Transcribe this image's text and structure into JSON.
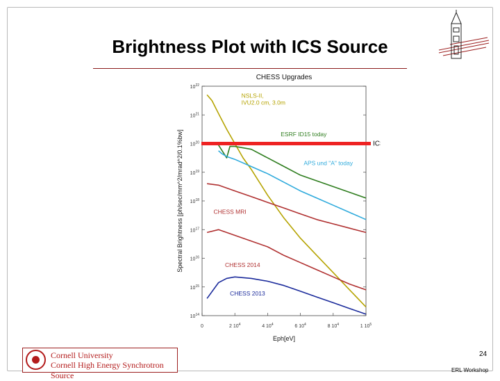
{
  "slide": {
    "title": "Brightness Plot with ICS Source",
    "page_number": "24",
    "footer_text": "ERL Workshop",
    "logo": {
      "line1": "Cornell University",
      "line2": "Cornell High Energy Synchrotron Source"
    }
  },
  "colors": {
    "accent": "#8b1a1a",
    "ics_line": "#ee2222"
  },
  "chart_data": {
    "type": "line",
    "title": "CHESS Upgrades",
    "xlabel": "Eph[eV]",
    "ylabel": "Spectral Brightness [ph/sec/mm^2/mrad^2/0.1%bw]",
    "xlim": [
      0,
      100000
    ],
    "ylim": [
      14,
      22
    ],
    "y_scale": "log",
    "x_ticks": [
      {
        "value": 0,
        "base": "0",
        "exp": ""
      },
      {
        "value": 20000,
        "base": "2 10",
        "exp": "4"
      },
      {
        "value": 40000,
        "base": "4 10",
        "exp": "4"
      },
      {
        "value": 60000,
        "base": "6 10",
        "exp": "4"
      },
      {
        "value": 80000,
        "base": "8 10",
        "exp": "4"
      },
      {
        "value": 100000,
        "base": "1 10",
        "exp": "5"
      }
    ],
    "y_ticks": [
      {
        "value": 14,
        "base": "10",
        "exp": "14"
      },
      {
        "value": 15,
        "base": "10",
        "exp": "15"
      },
      {
        "value": 16,
        "base": "10",
        "exp": "16"
      },
      {
        "value": 17,
        "base": "10",
        "exp": "17"
      },
      {
        "value": 18,
        "base": "10",
        "exp": "18"
      },
      {
        "value": 19,
        "base": "10",
        "exp": "19"
      },
      {
        "value": 20,
        "base": "10",
        "exp": "20"
      },
      {
        "value": 21,
        "base": "10",
        "exp": "21"
      },
      {
        "value": 22,
        "base": "10",
        "exp": "22"
      }
    ],
    "series": [
      {
        "name": "NSLS-II, IVU2.0 cm, 3.0m",
        "color": "#b5a300",
        "x": [
          3000,
          6000,
          10000,
          15000,
          20000,
          25000,
          30000,
          40000,
          50000,
          60000,
          70000,
          80000,
          90000,
          100000
        ],
        "y": [
          21.7,
          21.5,
          21.05,
          20.5,
          20.0,
          19.5,
          19.1,
          18.2,
          17.4,
          16.7,
          16.1,
          15.5,
          14.9,
          14.3
        ]
      },
      {
        "name": "ESRF ID15 today",
        "color": "#2e7d1e",
        "x": [
          10000,
          15000,
          17000,
          20000,
          30000,
          40000,
          50000,
          60000,
          70000,
          80000,
          90000,
          100000
        ],
        "y": [
          19.95,
          19.5,
          19.9,
          19.9,
          19.8,
          19.5,
          19.2,
          18.9,
          18.7,
          18.5,
          18.3,
          18.1
        ]
      },
      {
        "name": "APS und \"A\" today",
        "color": "#2eaadc",
        "x": [
          10000,
          12000,
          15000,
          20000,
          30000,
          40000,
          50000,
          60000,
          70000,
          80000,
          90000,
          100000
        ],
        "y": [
          19.75,
          19.65,
          19.55,
          19.45,
          19.2,
          18.95,
          18.65,
          18.35,
          18.1,
          17.85,
          17.6,
          17.35
        ]
      },
      {
        "name": "CHESS MRI",
        "color": "#b03030",
        "x": [
          3000,
          10000,
          20000,
          30000,
          40000,
          50000,
          60000,
          70000,
          80000,
          90000,
          100000
        ],
        "y": [
          18.6,
          18.55,
          18.35,
          18.15,
          17.95,
          17.75,
          17.55,
          17.35,
          17.2,
          17.05,
          16.9
        ]
      },
      {
        "name": "CHESS 2014",
        "color": "#b03030",
        "x": [
          3000,
          10000,
          20000,
          30000,
          40000,
          50000,
          60000,
          70000,
          80000,
          90000,
          100000
        ],
        "y": [
          16.9,
          17.0,
          16.8,
          16.6,
          16.4,
          16.1,
          15.85,
          15.6,
          15.35,
          15.1,
          14.9
        ]
      },
      {
        "name": "CHESS 2013",
        "color": "#1a2a9b",
        "x": [
          3000,
          10000,
          15000,
          20000,
          30000,
          40000,
          50000,
          60000,
          70000,
          80000,
          90000,
          100000
        ],
        "y": [
          14.6,
          15.15,
          15.3,
          15.35,
          15.3,
          15.2,
          15.05,
          14.85,
          14.65,
          14.45,
          14.25,
          14.05
        ]
      }
    ],
    "ics_source": {
      "label": "ICS/ERL source",
      "y": 20.0,
      "x": [
        0,
        100000
      ]
    },
    "annotations": [
      {
        "lines": [
          "NSLS-II,",
          "IVU2.0 cm, 3.0m"
        ],
        "color": "#b5a300",
        "at_x": 24000,
        "at_y": 21.6
      },
      {
        "lines": [
          "ESRF ID15 today"
        ],
        "color": "#2e7d1e",
        "at_x": 48000,
        "at_y": 20.25
      },
      {
        "lines": [
          "APS und \"A\" today"
        ],
        "color": "#2eaadc",
        "at_x": 62000,
        "at_y": 19.25
      },
      {
        "lines": [
          "CHESS MRI"
        ],
        "color": "#b03030",
        "at_x": 7000,
        "at_y": 17.55
      },
      {
        "lines": [
          "CHESS 2014"
        ],
        "color": "#b03030",
        "at_x": 14000,
        "at_y": 15.7
      },
      {
        "lines": [
          "CHESS 2013"
        ],
        "color": "#1a2a9b",
        "at_x": 17000,
        "at_y": 14.7
      }
    ]
  }
}
